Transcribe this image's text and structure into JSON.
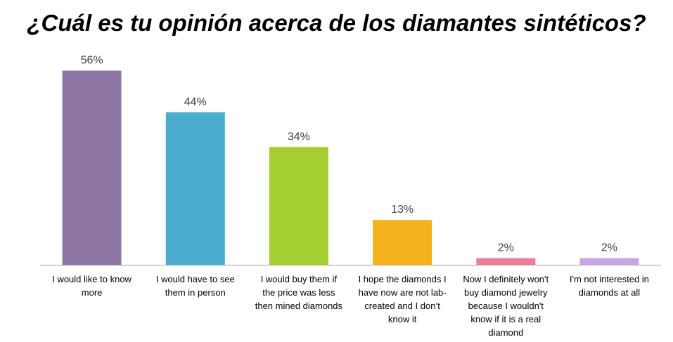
{
  "title": "¿Cuál es tu opinión acerca de los diamantes sintéticos?",
  "chart_data": {
    "type": "bar",
    "title": "¿Cuál es tu opinión acerca de los diamantes sintéticos?",
    "categories": [
      "I would like to know\nmore",
      "I would have to see\nthem in person",
      "I would buy them if\nthe price was less\nthen mined diamonds",
      "I hope the diamonds I\nhave now are not lab-\ncreated and I don’t\nknow it",
      "Now I definitely won't\nbuy diamond jewelry\nbecause I wouldn't\nknow if it is a real\ndiamond",
      "I'm not interested in\ndiamonds at all"
    ],
    "values": [
      56,
      44,
      34,
      13,
      2,
      2
    ],
    "value_labels": [
      "56%",
      "44%",
      "34%",
      "13%",
      "2%",
      "2%"
    ],
    "colors": [
      "#8E77A4",
      "#4BACCE",
      "#A4CE32",
      "#F6B11F",
      "#EE7D9A",
      "#C8A6E2"
    ],
    "axis_color": "#A0A0A0",
    "ylim": [
      0,
      56
    ],
    "grid": false,
    "legend": "none",
    "xlabel": "",
    "ylabel": ""
  }
}
